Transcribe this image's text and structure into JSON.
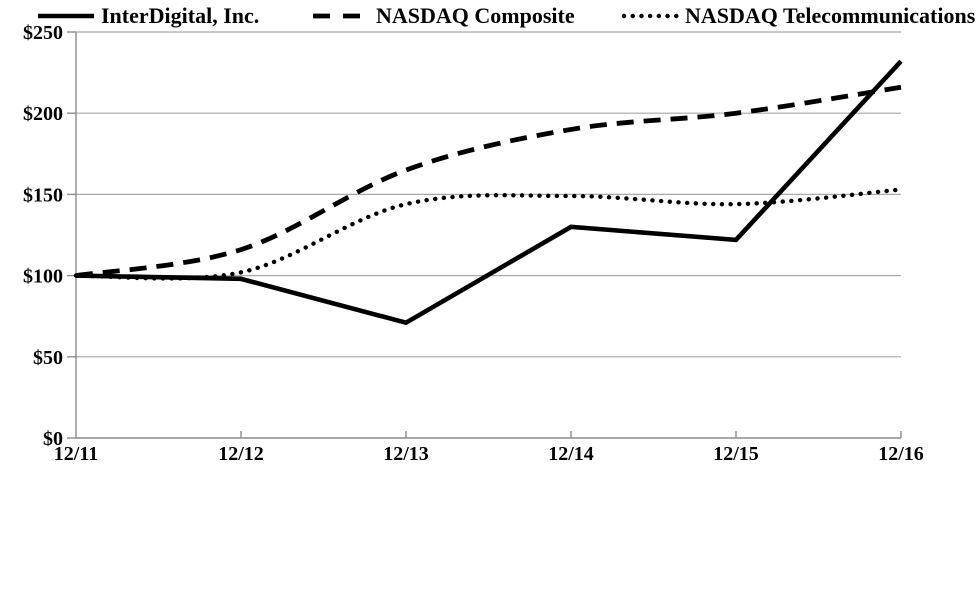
{
  "chart_data": {
    "type": "line",
    "title": "",
    "xlabel": "",
    "ylabel": "",
    "categories": [
      "12/11",
      "12/12",
      "12/13",
      "12/14",
      "12/15",
      "12/16"
    ],
    "series": [
      {
        "name": "InterDigital, Inc.",
        "style": "solid",
        "smooth": false,
        "values": [
          100,
          98,
          71,
          130,
          122,
          232
        ]
      },
      {
        "name": "NASDAQ Composite",
        "style": "dashed",
        "smooth": true,
        "values": [
          100,
          116,
          165,
          190,
          200,
          216
        ]
      },
      {
        "name": "NASDAQ Telecommunications",
        "style": "dotted",
        "smooth": true,
        "values": [
          100,
          102,
          144,
          149,
          144,
          153
        ]
      }
    ],
    "ylim": [
      0,
      250
    ],
    "y_tick_step": 50,
    "y_tick_labels": [
      "$0",
      "$50",
      "$100",
      "$150",
      "$200",
      "$250"
    ],
    "grid": "horizontal-only",
    "legend_position": "bottom",
    "line_color": "#000000",
    "axis_color": "#8c8c8c",
    "gridline_color": "#a9a9a9",
    "background_color": "#ffffff"
  }
}
